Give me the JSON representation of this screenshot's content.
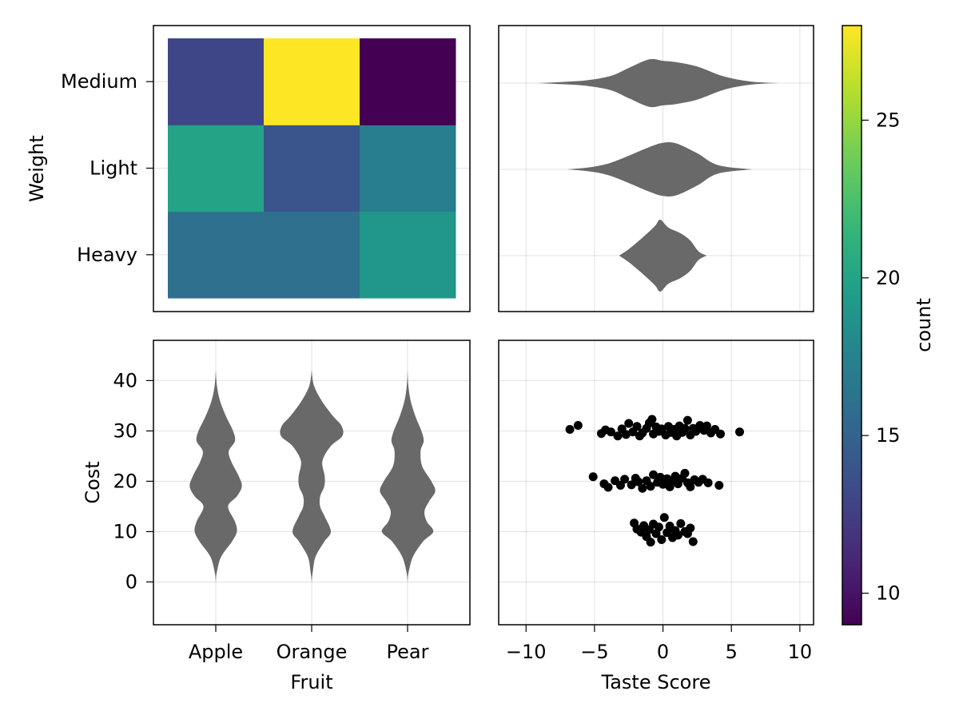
{
  "chart_data": [
    {
      "type": "heatmap",
      "panel": "top-left",
      "x_categories": [
        "Apple",
        "Orange",
        "Pear"
      ],
      "y_categories": [
        "Heavy",
        "Light",
        "Medium"
      ],
      "ylabel": "Weight",
      "values": [
        [
          16,
          16,
          19
        ],
        [
          20,
          14,
          17
        ],
        [
          13,
          28,
          9
        ]
      ],
      "grid": true
    },
    {
      "type": "violin",
      "panel": "top-right",
      "orientation": "horizontal",
      "categories": [
        "Heavy",
        "Light",
        "Medium"
      ],
      "xlim": [
        -12,
        11
      ],
      "xticks": [
        -10,
        -5,
        0,
        5,
        10
      ],
      "color": "#696969",
      "grid": true,
      "profiles": [
        {
          "category": "Heavy",
          "points": [
            [
              -3.2,
              0.0
            ],
            [
              -2.5,
              0.18
            ],
            [
              -1.5,
              0.5
            ],
            [
              -0.6,
              0.82
            ],
            [
              -0.2,
              1.0
            ],
            [
              0.4,
              0.78
            ],
            [
              1.3,
              0.62
            ],
            [
              2.0,
              0.42
            ],
            [
              2.6,
              0.12
            ],
            [
              3.2,
              0.0
            ]
          ]
        },
        {
          "category": "Light",
          "points": [
            [
              -7.0,
              0.0
            ],
            [
              -5.5,
              0.05
            ],
            [
              -4.0,
              0.16
            ],
            [
              -2.5,
              0.38
            ],
            [
              -1.0,
              0.62
            ],
            [
              0.0,
              0.74
            ],
            [
              1.0,
              0.72
            ],
            [
              2.5,
              0.45
            ],
            [
              4.0,
              0.12
            ],
            [
              6.5,
              0.0
            ]
          ]
        },
        {
          "category": "Medium",
          "points": [
            [
              -9.2,
              0.0
            ],
            [
              -7.5,
              0.03
            ],
            [
              -5.5,
              0.08
            ],
            [
              -3.8,
              0.2
            ],
            [
              -2.5,
              0.42
            ],
            [
              -1.0,
              0.66
            ],
            [
              0.0,
              0.62
            ],
            [
              1.0,
              0.58
            ],
            [
              2.5,
              0.46
            ],
            [
              4.5,
              0.18
            ],
            [
              6.5,
              0.04
            ],
            [
              8.5,
              0.0
            ]
          ]
        }
      ]
    },
    {
      "type": "violin",
      "panel": "bottom-left",
      "orientation": "vertical",
      "categories": [
        "Apple",
        "Orange",
        "Pear"
      ],
      "xlabel": "Fruit",
      "ylabel": "Cost",
      "ylim": [
        -8.5,
        48
      ],
      "yticks": [
        0,
        10,
        20,
        30,
        40
      ],
      "color": "#696969",
      "grid": true,
      "profiles": [
        {
          "category": "Apple",
          "points": [
            [
              0,
              0.0
            ],
            [
              2,
              0.03
            ],
            [
              5,
              0.14
            ],
            [
              8,
              0.42
            ],
            [
              10,
              0.55
            ],
            [
              12,
              0.5
            ],
            [
              15,
              0.32
            ],
            [
              17,
              0.55
            ],
            [
              19,
              0.68
            ],
            [
              21,
              0.6
            ],
            [
              24,
              0.4
            ],
            [
              26,
              0.34
            ],
            [
              28,
              0.5
            ],
            [
              30,
              0.45
            ],
            [
              33,
              0.26
            ],
            [
              36,
              0.11
            ],
            [
              39,
              0.03
            ],
            [
              42,
              0.0
            ]
          ]
        },
        {
          "category": "Orange",
          "points": [
            [
              0,
              0.0
            ],
            [
              2,
              0.03
            ],
            [
              5,
              0.1
            ],
            [
              8,
              0.33
            ],
            [
              10,
              0.5
            ],
            [
              13,
              0.34
            ],
            [
              15,
              0.22
            ],
            [
              17,
              0.22
            ],
            [
              19,
              0.33
            ],
            [
              21,
              0.34
            ],
            [
              24,
              0.28
            ],
            [
              27,
              0.5
            ],
            [
              29,
              0.8
            ],
            [
              31,
              0.78
            ],
            [
              33,
              0.55
            ],
            [
              36,
              0.26
            ],
            [
              39,
              0.06
            ],
            [
              42,
              0.0
            ]
          ]
        },
        {
          "category": "Pear",
          "points": [
            [
              0,
              0.0
            ],
            [
              2,
              0.03
            ],
            [
              5,
              0.14
            ],
            [
              8,
              0.4
            ],
            [
              10,
              0.67
            ],
            [
              12,
              0.5
            ],
            [
              14,
              0.44
            ],
            [
              16,
              0.56
            ],
            [
              18,
              0.72
            ],
            [
              20,
              0.62
            ],
            [
              23,
              0.38
            ],
            [
              26,
              0.34
            ],
            [
              28,
              0.42
            ],
            [
              30,
              0.36
            ],
            [
              33,
              0.2
            ],
            [
              36,
              0.08
            ],
            [
              39,
              0.02
            ],
            [
              42,
              0.0
            ]
          ]
        }
      ]
    },
    {
      "type": "scatter",
      "panel": "bottom-right",
      "xlabel": "Taste Score",
      "xlim": [
        -12,
        11
      ],
      "xticks": [
        -10,
        -5,
        0,
        5,
        10
      ],
      "ylim": [
        -8.5,
        48
      ],
      "color": "#000000",
      "grid": true,
      "points": [
        [
          -6.8,
          30.3
        ],
        [
          -6.2,
          31.1
        ],
        [
          -4.5,
          29.5
        ],
        [
          -4.2,
          30.2
        ],
        [
          -3.8,
          29.8
        ],
        [
          -3.3,
          29.0
        ],
        [
          -3.0,
          30.4
        ],
        [
          -2.7,
          29.3
        ],
        [
          -2.5,
          31.5
        ],
        [
          -2.2,
          29.8
        ],
        [
          -1.9,
          30.9
        ],
        [
          -1.7,
          29.0
        ],
        [
          -1.5,
          29.6
        ],
        [
          -1.2,
          30.5
        ],
        [
          -1.0,
          31.6
        ],
        [
          -0.8,
          32.3
        ],
        [
          -0.7,
          29.4
        ],
        [
          -0.5,
          30.8
        ],
        [
          -0.3,
          29.9
        ],
        [
          -0.1,
          30.4
        ],
        [
          0.2,
          29.2
        ],
        [
          0.4,
          30.9
        ],
        [
          0.6,
          29.7
        ],
        [
          0.8,
          30.3
        ],
        [
          1.0,
          29.0
        ],
        [
          1.2,
          31.0
        ],
        [
          1.4,
          29.7
        ],
        [
          1.6,
          30.5
        ],
        [
          1.8,
          32.1
        ],
        [
          2.0,
          29.2
        ],
        [
          2.2,
          30.5
        ],
        [
          2.4,
          29.9
        ],
        [
          2.7,
          31.1
        ],
        [
          3.0,
          30.1
        ],
        [
          3.2,
          31.0
        ],
        [
          3.5,
          29.6
        ],
        [
          3.8,
          30.3
        ],
        [
          4.2,
          29.4
        ],
        [
          5.6,
          29.8
        ],
        [
          -5.1,
          20.9
        ],
        [
          -4.3,
          19.5
        ],
        [
          -4.0,
          18.8
        ],
        [
          -3.5,
          20.1
        ],
        [
          -3.1,
          19.2
        ],
        [
          -2.8,
          20.4
        ],
        [
          -2.3,
          19.3
        ],
        [
          -2.0,
          20.6
        ],
        [
          -1.8,
          19.9
        ],
        [
          -1.5,
          18.6
        ],
        [
          -1.2,
          20.1
        ],
        [
          -0.9,
          19.0
        ],
        [
          -0.7,
          21.3
        ],
        [
          -0.4,
          19.8
        ],
        [
          -0.2,
          20.8
        ],
        [
          0.0,
          19.4
        ],
        [
          0.3,
          20.5
        ],
        [
          0.5,
          18.9
        ],
        [
          0.7,
          20.2
        ],
        [
          0.9,
          21.0
        ],
        [
          1.1,
          19.5
        ],
        [
          1.4,
          20.6
        ],
        [
          1.6,
          21.6
        ],
        [
          1.8,
          19.7
        ],
        [
          2.0,
          18.9
        ],
        [
          2.3,
          20.3
        ],
        [
          2.6,
          19.8
        ],
        [
          2.9,
          20.4
        ],
        [
          3.3,
          19.7
        ],
        [
          4.1,
          19.2
        ],
        [
          -2.1,
          11.7
        ],
        [
          -1.9,
          10.5
        ],
        [
          -1.6,
          9.9
        ],
        [
          -1.4,
          11.2
        ],
        [
          -1.2,
          9.0
        ],
        [
          -1.0,
          10.4
        ],
        [
          -0.9,
          7.9
        ],
        [
          -0.7,
          11.5
        ],
        [
          -0.5,
          9.6
        ],
        [
          -0.3,
          10.9
        ],
        [
          -0.1,
          8.4
        ],
        [
          0.1,
          12.8
        ],
        [
          0.3,
          9.8
        ],
        [
          0.5,
          11.1
        ],
        [
          0.7,
          8.8
        ],
        [
          0.9,
          10.2
        ],
        [
          1.1,
          9.3
        ],
        [
          1.3,
          11.6
        ],
        [
          1.6,
          10.0
        ],
        [
          1.8,
          9.6
        ],
        [
          2.0,
          10.7
        ],
        [
          2.2,
          8.0
        ]
      ]
    }
  ],
  "colorbar": {
    "label": "count",
    "ticks": [
      10,
      15,
      20,
      25
    ],
    "limits": [
      9,
      28
    ],
    "colormap": "viridis"
  }
}
